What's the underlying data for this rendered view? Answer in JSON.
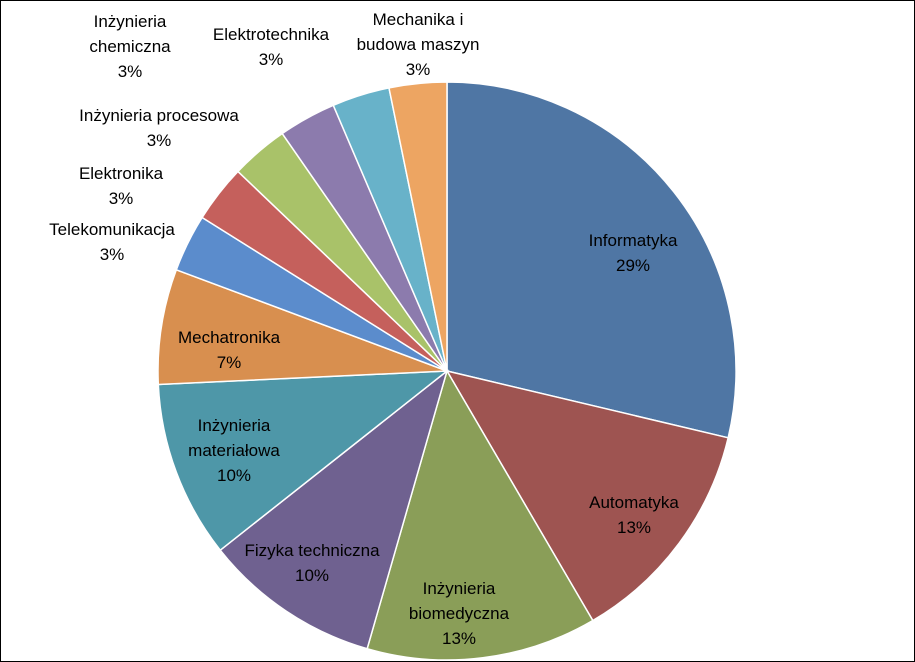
{
  "chart_data": {
    "type": "pie",
    "title": "",
    "legend": "none",
    "slices": [
      {
        "label_lines": [
          "Informatyka"
        ],
        "percent_label": "29%",
        "value": 29,
        "color": "#4f76a4"
      },
      {
        "label_lines": [
          "Automatyka"
        ],
        "percent_label": "13%",
        "value": 13,
        "color": "#9e5451"
      },
      {
        "label_lines": [
          "Inżynieria",
          "biomedyczna"
        ],
        "percent_label": "13%",
        "value": 13,
        "color": "#8a9e58"
      },
      {
        "label_lines": [
          "Fizyka techniczna"
        ],
        "percent_label": "10%",
        "value": 10,
        "color": "#6f6190"
      },
      {
        "label_lines": [
          "Inżynieria",
          "materiałowa"
        ],
        "percent_label": "10%",
        "value": 10,
        "color": "#4e97a8"
      },
      {
        "label_lines": [
          "Mechatronika"
        ],
        "percent_label": "7%",
        "value": 6.5,
        "color": "#d88f4f"
      },
      {
        "label_lines": [
          "Telekomunikacja"
        ],
        "percent_label": "3%",
        "value": 3.25,
        "color": "#5b8ccc"
      },
      {
        "label_lines": [
          "Elektronika"
        ],
        "percent_label": "3%",
        "value": 3.25,
        "color": "#c5605c"
      },
      {
        "label_lines": [
          "Inżynieria procesowa"
        ],
        "percent_label": "3%",
        "value": 3.25,
        "color": "#a9c269"
      },
      {
        "label_lines": [
          "Inżynieria",
          "chemiczna"
        ],
        "percent_label": "3%",
        "value": 3.25,
        "color": "#8c7bad"
      },
      {
        "label_lines": [
          "Elektrotechnika"
        ],
        "percent_label": "3%",
        "value": 3.25,
        "color": "#68b2c9"
      },
      {
        "label_lines": [
          "Mechanika i",
          "budowa maszyn"
        ],
        "percent_label": "3%",
        "value": 3.25,
        "color": "#eda562"
      }
    ]
  }
}
